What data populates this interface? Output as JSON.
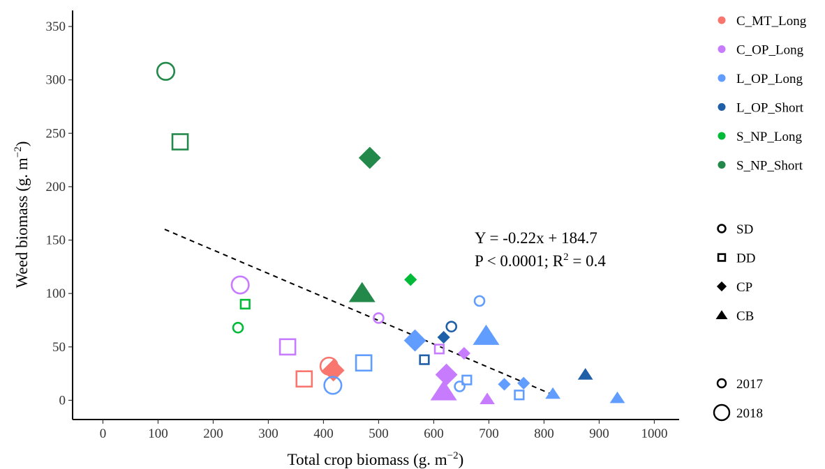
{
  "chart_data": {
    "type": "scatter",
    "xlabel": "Total crop biomass (g. m",
    "xlabel_sup": "−2",
    "xlabel_end": ")",
    "ylabel": "Weed biomass (g. m",
    "ylabel_sup": "−2",
    "ylabel_end": ")",
    "xlim": [
      -55,
      1045
    ],
    "ylim": [
      -18,
      365
    ],
    "xticks": [
      0,
      100,
      200,
      300,
      400,
      500,
      600,
      700,
      800,
      900,
      1000
    ],
    "yticks": [
      0,
      50,
      100,
      150,
      200,
      250,
      300,
      350
    ],
    "grid": false,
    "legend_position": "right",
    "regression": {
      "x_range": [
        112,
        820
      ],
      "slope": -0.22,
      "intercept": 184.7,
      "line1": "Y = -0.22x + 184.7",
      "line2_prefix": "P < 0.0001; R",
      "line2_sup": "2",
      "line2_suffix": " = 0.4"
    },
    "treatments": [
      {
        "name": "C_MT_Long",
        "color": "#F8766D"
      },
      {
        "name": "C_OP_Long",
        "color": "#C77CFF"
      },
      {
        "name": "L_OP_Long",
        "color": "#619CFF"
      },
      {
        "name": "L_OP_Short",
        "color": "#1F5FA8"
      },
      {
        "name": "S_NP_Long",
        "color": "#00BA38"
      },
      {
        "name": "S_NP_Short",
        "color": "#23894A"
      }
    ],
    "shapes": [
      {
        "name": "SD",
        "marker": "circle-open"
      },
      {
        "name": "DD",
        "marker": "square-open"
      },
      {
        "name": "CP",
        "marker": "diamond-filled"
      },
      {
        "name": "CB",
        "marker": "triangle-filled"
      }
    ],
    "years": [
      {
        "name": "2017",
        "size": "small"
      },
      {
        "name": "2018",
        "size": "large"
      }
    ],
    "points": [
      {
        "x": 114,
        "y": 308,
        "treatment": "S_NP_Short",
        "shape": "SD",
        "year": "2018"
      },
      {
        "x": 140,
        "y": 242,
        "treatment": "S_NP_Short",
        "shape": "DD",
        "year": "2018"
      },
      {
        "x": 484,
        "y": 227,
        "treatment": "S_NP_Short",
        "shape": "CP",
        "year": "2018"
      },
      {
        "x": 470,
        "y": 100,
        "treatment": "S_NP_Short",
        "shape": "CB",
        "year": "2018"
      },
      {
        "x": 558,
        "y": 113,
        "treatment": "S_NP_Long",
        "shape": "CP",
        "year": "2017"
      },
      {
        "x": 258,
        "y": 90,
        "treatment": "S_NP_Long",
        "shape": "DD",
        "year": "2017"
      },
      {
        "x": 245,
        "y": 68,
        "treatment": "S_NP_Long",
        "shape": "SD",
        "year": "2017"
      },
      {
        "x": 249,
        "y": 108,
        "treatment": "C_OP_Long",
        "shape": "SD",
        "year": "2018"
      },
      {
        "x": 500,
        "y": 77,
        "treatment": "C_OP_Long",
        "shape": "SD",
        "year": "2017"
      },
      {
        "x": 335,
        "y": 50,
        "treatment": "C_OP_Long",
        "shape": "DD",
        "year": "2018"
      },
      {
        "x": 610,
        "y": 48,
        "treatment": "C_OP_Long",
        "shape": "DD",
        "year": "2017"
      },
      {
        "x": 655,
        "y": 44,
        "treatment": "C_OP_Long",
        "shape": "CP",
        "year": "2017"
      },
      {
        "x": 623,
        "y": 24,
        "treatment": "C_OP_Long",
        "shape": "CP",
        "year": "2018"
      },
      {
        "x": 618,
        "y": 8,
        "treatment": "C_OP_Long",
        "shape": "CB",
        "year": "2018"
      },
      {
        "x": 697,
        "y": 1,
        "treatment": "C_OP_Long",
        "shape": "CB",
        "year": "2017"
      },
      {
        "x": 410,
        "y": 32,
        "treatment": "C_MT_Long",
        "shape": "SD",
        "year": "2018"
      },
      {
        "x": 418,
        "y": 28,
        "treatment": "C_MT_Long",
        "shape": "CP",
        "year": "2018"
      },
      {
        "x": 365,
        "y": 20,
        "treatment": "C_MT_Long",
        "shape": "DD",
        "year": "2018"
      },
      {
        "x": 417,
        "y": 14,
        "treatment": "L_OP_Long",
        "shape": "SD",
        "year": "2018"
      },
      {
        "x": 473,
        "y": 35,
        "treatment": "L_OP_Long",
        "shape": "DD",
        "year": "2018"
      },
      {
        "x": 566,
        "y": 56,
        "treatment": "L_OP_Long",
        "shape": "CP",
        "year": "2018"
      },
      {
        "x": 683,
        "y": 93,
        "treatment": "L_OP_Long",
        "shape": "SD",
        "year": "2017"
      },
      {
        "x": 695,
        "y": 60,
        "treatment": "L_OP_Long",
        "shape": "CB",
        "year": "2018"
      },
      {
        "x": 647,
        "y": 13,
        "treatment": "L_OP_Long",
        "shape": "SD",
        "year": "2017"
      },
      {
        "x": 660,
        "y": 19,
        "treatment": "L_OP_Long",
        "shape": "DD",
        "year": "2017"
      },
      {
        "x": 728,
        "y": 15,
        "treatment": "L_OP_Long",
        "shape": "CP",
        "year": "2017"
      },
      {
        "x": 763,
        "y": 16,
        "treatment": "L_OP_Long",
        "shape": "CP",
        "year": "2017"
      },
      {
        "x": 755,
        "y": 5,
        "treatment": "L_OP_Long",
        "shape": "DD",
        "year": "2017"
      },
      {
        "x": 816,
        "y": 6,
        "treatment": "L_OP_Long",
        "shape": "CB",
        "year": "2017"
      },
      {
        "x": 933,
        "y": 2,
        "treatment": "L_OP_Long",
        "shape": "CB",
        "year": "2017"
      },
      {
        "x": 632,
        "y": 69,
        "treatment": "L_OP_Short",
        "shape": "SD",
        "year": "2017"
      },
      {
        "x": 618,
        "y": 59,
        "treatment": "L_OP_Short",
        "shape": "CP",
        "year": "2017"
      },
      {
        "x": 583,
        "y": 38,
        "treatment": "L_OP_Short",
        "shape": "DD",
        "year": "2017"
      },
      {
        "x": 875,
        "y": 24,
        "treatment": "L_OP_Short",
        "shape": "CB",
        "year": "2017"
      }
    ]
  }
}
